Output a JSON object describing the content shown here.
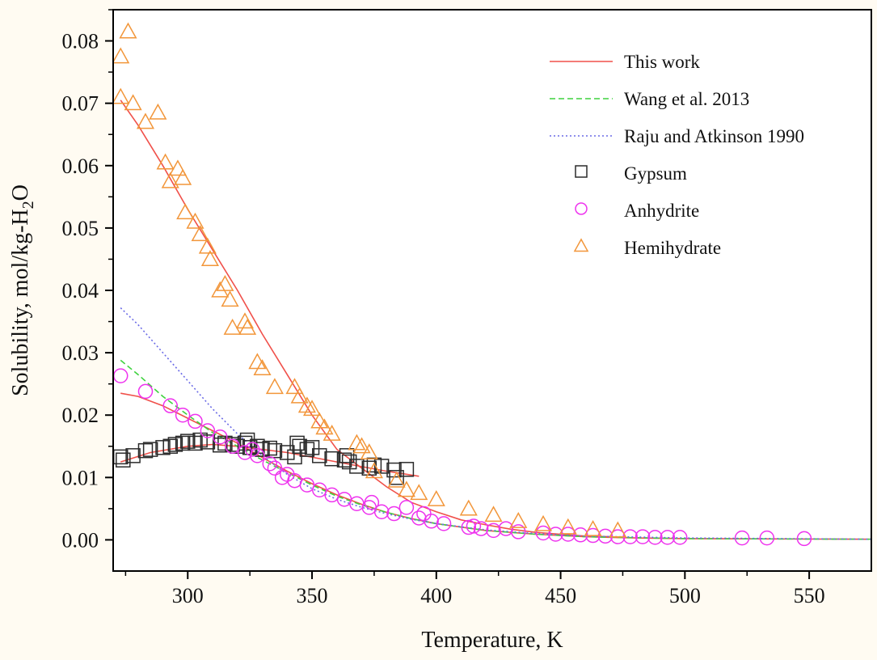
{
  "chart_data": {
    "type": "scatter",
    "xlabel": "Temperature, K",
    "ylabel": "Solubility, mol/kg-H",
    "ylabel_sub": "2",
    "ylabel_tail": "O",
    "xlim": [
      270,
      575
    ],
    "ylim": [
      -0.005,
      0.085
    ],
    "xticks": [
      300,
      350,
      400,
      450,
      500,
      550
    ],
    "yticks": [
      0.0,
      0.01,
      0.02,
      0.03,
      0.04,
      0.05,
      0.06,
      0.07,
      0.08
    ],
    "legend_position": "top-right",
    "legend": [
      {
        "label": "This work",
        "kind": "line",
        "style": "solid",
        "color": "#f0504a"
      },
      {
        "label": "Wang et al. 2013",
        "kind": "line",
        "style": "dashed",
        "color": "#3fd23f"
      },
      {
        "label": "Raju and Atkinson 1990",
        "kind": "line",
        "style": "dotted",
        "color": "#6a6ae6"
      },
      {
        "label": "Gypsum",
        "kind": "marker",
        "marker": "square",
        "color": "#2b2b2b"
      },
      {
        "label": "Anhydrite",
        "kind": "marker",
        "marker": "circle",
        "color": "#ee33ee"
      },
      {
        "label": "Hemihydrate",
        "kind": "marker",
        "marker": "triangle",
        "color": "#f2963a"
      }
    ],
    "lines": [
      {
        "name": "This work - Hemihydrate",
        "style": "solid",
        "color": "#f0504a",
        "points": [
          [
            273,
            0.0705
          ],
          [
            280,
            0.0665
          ],
          [
            290,
            0.06
          ],
          [
            300,
            0.053
          ],
          [
            310,
            0.0465
          ],
          [
            320,
            0.04
          ],
          [
            330,
            0.033
          ],
          [
            340,
            0.0265
          ],
          [
            350,
            0.02
          ],
          [
            360,
            0.0145
          ],
          [
            370,
            0.0115
          ],
          [
            380,
            0.0085
          ],
          [
            390,
            0.006
          ],
          [
            400,
            0.0045
          ],
          [
            410,
            0.0032
          ],
          [
            420,
            0.0024
          ],
          [
            430,
            0.0017
          ],
          [
            440,
            0.0012
          ],
          [
            450,
            0.0009
          ],
          [
            460,
            0.0006
          ],
          [
            470,
            0.0005
          ],
          [
            475,
            0.0004
          ]
        ]
      },
      {
        "name": "This work - Gypsum",
        "style": "solid",
        "color": "#f0504a",
        "points": [
          [
            273,
            0.0125
          ],
          [
            285,
            0.014
          ],
          [
            300,
            0.015
          ],
          [
            310,
            0.0153
          ],
          [
            320,
            0.015
          ],
          [
            340,
            0.014
          ],
          [
            360,
            0.0125
          ],
          [
            380,
            0.011
          ],
          [
            393,
            0.0102
          ]
        ]
      },
      {
        "name": "This work - Anhydrite",
        "style": "solid",
        "color": "#f0504a",
        "points": [
          [
            273,
            0.0235
          ],
          [
            280,
            0.023
          ],
          [
            290,
            0.0215
          ],
          [
            300,
            0.0195
          ],
          [
            310,
            0.0175
          ],
          [
            320,
            0.0155
          ],
          [
            330,
            0.0132
          ],
          [
            340,
            0.011
          ],
          [
            350,
            0.009
          ],
          [
            360,
            0.0072
          ],
          [
            370,
            0.0057
          ],
          [
            380,
            0.0044
          ],
          [
            390,
            0.0034
          ],
          [
            400,
            0.0026
          ],
          [
            420,
            0.0015
          ],
          [
            440,
            0.0009
          ],
          [
            460,
            0.0005
          ],
          [
            480,
            0.0003
          ],
          [
            500,
            0.0002
          ],
          [
            575,
            0.0001
          ]
        ]
      },
      {
        "name": "Wang et al. 2013",
        "style": "dashed",
        "color": "#3fd23f",
        "points": [
          [
            273,
            0.0288
          ],
          [
            280,
            0.0265
          ],
          [
            290,
            0.023
          ],
          [
            300,
            0.02
          ],
          [
            310,
            0.0172
          ],
          [
            320,
            0.015
          ],
          [
            330,
            0.0128
          ],
          [
            340,
            0.0108
          ],
          [
            350,
            0.0088
          ],
          [
            360,
            0.007
          ],
          [
            370,
            0.0056
          ],
          [
            380,
            0.0044
          ],
          [
            390,
            0.0034
          ],
          [
            400,
            0.0026
          ],
          [
            420,
            0.0015
          ],
          [
            440,
            0.0009
          ],
          [
            460,
            0.0005
          ],
          [
            500,
            0.0002
          ],
          [
            575,
            0.0001
          ]
        ]
      },
      {
        "name": "Raju and Atkinson 1990",
        "style": "dotted",
        "color": "#6a6ae6",
        "points": [
          [
            273,
            0.0372
          ],
          [
            280,
            0.0345
          ],
          [
            290,
            0.03
          ],
          [
            300,
            0.0255
          ],
          [
            310,
            0.021
          ],
          [
            320,
            0.017
          ],
          [
            330,
            0.0135
          ],
          [
            340,
            0.0105
          ],
          [
            350,
            0.0082
          ],
          [
            360,
            0.0065
          ],
          [
            370,
            0.0052
          ],
          [
            380,
            0.0042
          ],
          [
            390,
            0.0033
          ],
          [
            400,
            0.0026
          ],
          [
            420,
            0.0016
          ],
          [
            440,
            0.001
          ],
          [
            460,
            0.0006
          ],
          [
            500,
            0.0003
          ],
          [
            575,
            0.0001
          ]
        ]
      }
    ],
    "series": [
      {
        "name": "Gypsum",
        "marker": "square",
        "color": "#2b2b2b",
        "points": [
          [
            273,
            0.0133
          ],
          [
            274,
            0.0128
          ],
          [
            278,
            0.0135
          ],
          [
            283,
            0.0143
          ],
          [
            285,
            0.0145
          ],
          [
            290,
            0.0148
          ],
          [
            293,
            0.015
          ],
          [
            295,
            0.0153
          ],
          [
            298,
            0.0155
          ],
          [
            300,
            0.0158
          ],
          [
            303,
            0.0155
          ],
          [
            305,
            0.016
          ],
          [
            308,
            0.0157
          ],
          [
            313,
            0.0152
          ],
          [
            315,
            0.0155
          ],
          [
            318,
            0.0153
          ],
          [
            320,
            0.015
          ],
          [
            323,
            0.0155
          ],
          [
            324,
            0.016
          ],
          [
            325,
            0.0148
          ],
          [
            328,
            0.015
          ],
          [
            330,
            0.0145
          ],
          [
            333,
            0.0147
          ],
          [
            335,
            0.0143
          ],
          [
            340,
            0.014
          ],
          [
            343,
            0.0133
          ],
          [
            344,
            0.0155
          ],
          [
            345,
            0.015
          ],
          [
            348,
            0.0145
          ],
          [
            350,
            0.0148
          ],
          [
            353,
            0.0135
          ],
          [
            358,
            0.013
          ],
          [
            363,
            0.0128
          ],
          [
            364,
            0.0135
          ],
          [
            365,
            0.0125
          ],
          [
            368,
            0.0118
          ],
          [
            373,
            0.0115
          ],
          [
            375,
            0.012
          ],
          [
            378,
            0.0118
          ],
          [
            383,
            0.0112
          ],
          [
            384,
            0.01
          ],
          [
            388,
            0.0113
          ]
        ]
      },
      {
        "name": "Anhydrite",
        "marker": "circle",
        "color": "#ee33ee",
        "points": [
          [
            273,
            0.0263
          ],
          [
            283,
            0.0238
          ],
          [
            293,
            0.0215
          ],
          [
            298,
            0.02
          ],
          [
            303,
            0.019
          ],
          [
            308,
            0.0175
          ],
          [
            313,
            0.0165
          ],
          [
            318,
            0.015
          ],
          [
            323,
            0.014
          ],
          [
            326,
            0.0145
          ],
          [
            328,
            0.0135
          ],
          [
            333,
            0.0122
          ],
          [
            335,
            0.0115
          ],
          [
            338,
            0.01
          ],
          [
            340,
            0.0105
          ],
          [
            343,
            0.0095
          ],
          [
            348,
            0.0088
          ],
          [
            353,
            0.008
          ],
          [
            358,
            0.0072
          ],
          [
            363,
            0.0065
          ],
          [
            368,
            0.0058
          ],
          [
            373,
            0.0052
          ],
          [
            374,
            0.006
          ],
          [
            378,
            0.0045
          ],
          [
            383,
            0.0042
          ],
          [
            388,
            0.0052
          ],
          [
            393,
            0.0035
          ],
          [
            395,
            0.0042
          ],
          [
            398,
            0.003
          ],
          [
            403,
            0.0026
          ],
          [
            413,
            0.002
          ],
          [
            415,
            0.0022
          ],
          [
            418,
            0.0018
          ],
          [
            423,
            0.0015
          ],
          [
            428,
            0.0018
          ],
          [
            433,
            0.0013
          ],
          [
            443,
            0.0011
          ],
          [
            448,
            0.0009
          ],
          [
            453,
            0.0009
          ],
          [
            458,
            0.0008
          ],
          [
            463,
            0.0007
          ],
          [
            468,
            0.0006
          ],
          [
            473,
            0.0005
          ],
          [
            478,
            0.0005
          ],
          [
            483,
            0.0005
          ],
          [
            488,
            0.0004
          ],
          [
            493,
            0.0004
          ],
          [
            498,
            0.0004
          ],
          [
            523,
            0.0003
          ],
          [
            533,
            0.0003
          ],
          [
            548,
            0.0002
          ]
        ]
      },
      {
        "name": "Hemihydrate",
        "marker": "triangle",
        "color": "#f2963a",
        "points": [
          [
            273,
            0.0775
          ],
          [
            276,
            0.0815
          ],
          [
            273,
            0.071
          ],
          [
            278,
            0.07
          ],
          [
            283,
            0.067
          ],
          [
            288,
            0.0685
          ],
          [
            291,
            0.0605
          ],
          [
            293,
            0.0575
          ],
          [
            296,
            0.0595
          ],
          [
            298,
            0.058
          ],
          [
            299,
            0.0525
          ],
          [
            303,
            0.051
          ],
          [
            305,
            0.049
          ],
          [
            308,
            0.047
          ],
          [
            309,
            0.045
          ],
          [
            313,
            0.04
          ],
          [
            315,
            0.041
          ],
          [
            317,
            0.0385
          ],
          [
            318,
            0.034
          ],
          [
            323,
            0.035
          ],
          [
            324,
            0.034
          ],
          [
            328,
            0.0285
          ],
          [
            330,
            0.0275
          ],
          [
            335,
            0.0245
          ],
          [
            343,
            0.0245
          ],
          [
            345,
            0.023
          ],
          [
            348,
            0.0215
          ],
          [
            350,
            0.021
          ],
          [
            353,
            0.019
          ],
          [
            355,
            0.018
          ],
          [
            358,
            0.017
          ],
          [
            368,
            0.0155
          ],
          [
            370,
            0.015
          ],
          [
            373,
            0.014
          ],
          [
            375,
            0.011
          ],
          [
            384,
            0.0095
          ],
          [
            388,
            0.008
          ],
          [
            393,
            0.0075
          ],
          [
            400,
            0.0065
          ],
          [
            413,
            0.005
          ],
          [
            423,
            0.004
          ],
          [
            433,
            0.003
          ],
          [
            443,
            0.0025
          ],
          [
            453,
            0.002
          ],
          [
            463,
            0.0017
          ],
          [
            473,
            0.0015
          ]
        ]
      }
    ]
  }
}
